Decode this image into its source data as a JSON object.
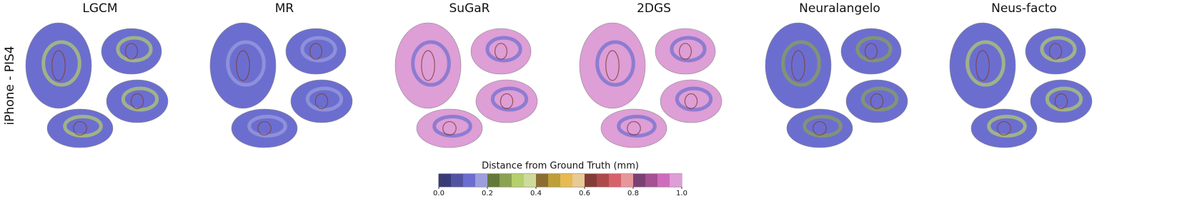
{
  "columns": [
    "LGCM",
    "MR",
    "SuGaR",
    "2DGS",
    "Neuralangelo",
    "Neus-facto"
  ],
  "row_label": "iPhone - PIS4",
  "colorbar": {
    "label": "Distance from Ground Truth (mm)",
    "lim": [
      0,
      1
    ],
    "ticks": [
      {
        "value": 0,
        "label": "0.0"
      },
      {
        "value": 0.2,
        "label": "0.2"
      },
      {
        "value": 0.4,
        "label": "0.4"
      },
      {
        "value": 0.6,
        "label": "0.6"
      },
      {
        "value": 0.8,
        "label": "0.8"
      },
      {
        "value": 1,
        "label": "1.0"
      }
    ],
    "colors": [
      "#393b79",
      "#5254a3",
      "#6b6ecf",
      "#9c9ede",
      "#637939",
      "#8ca252",
      "#b5cf6b",
      "#cedb9c",
      "#8c6d31",
      "#bd9e39",
      "#e7ba52",
      "#e7cb94",
      "#843c39",
      "#ad494a",
      "#d6616b",
      "#e7969c",
      "#7b4173",
      "#a55194",
      "#ce6dbd",
      "#de9ed6"
    ]
  }
}
